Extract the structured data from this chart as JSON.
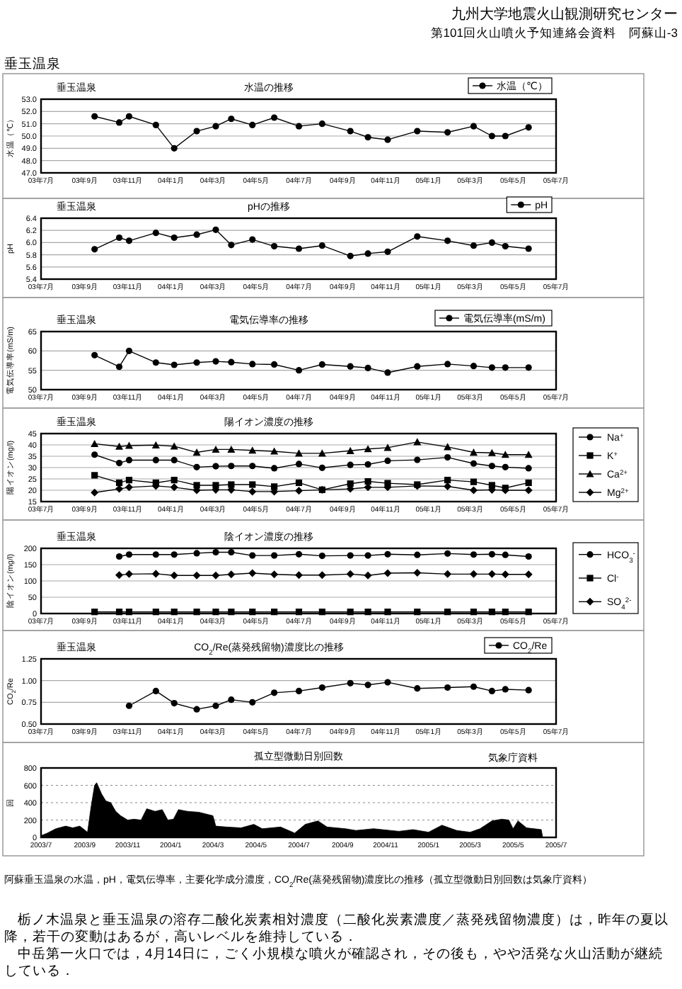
{
  "chart_data": [
    {
      "type": "line",
      "title": "水温の推移",
      "subtitle": "垂玉温泉",
      "ylabel": "水温（℃）",
      "annotations": [
        "九州大学地震火山観測研究センター",
        "第101回火山噴火予知連絡会資料　阿蘇山-3",
        "垂玉温泉"
      ],
      "x": [
        "2003-09-15",
        "2003-10-20",
        "2003-11-03",
        "2003-12-11",
        "2004-01-06",
        "2004-02-07",
        "2004-03-05",
        "2004-03-27",
        "2004-04-26",
        "2004-05-27",
        "2004-07-01",
        "2004-08-03",
        "2004-09-12",
        "2004-10-07",
        "2004-11-04",
        "2004-12-16",
        "2005-01-28",
        "2005-03-06",
        "2005-04-01",
        "2005-04-20",
        "2005-05-23"
      ],
      "series": [
        {
          "name": "水温（℃）",
          "color": "#000000",
          "values": [
            51.6,
            51.1,
            51.6,
            50.9,
            49.0,
            50.4,
            50.8,
            51.4,
            50.9,
            51.5,
            50.8,
            51.0,
            50.4,
            49.9,
            49.7,
            50.4,
            50.3,
            50.8,
            50.0,
            50.0,
            50.7
          ]
        }
      ],
      "xlim": [
        "2003-07-01",
        "2005-07-01"
      ],
      "xticks": [
        {
          "value": "2003-07-01",
          "label": "03年7月"
        },
        {
          "value": "2003-09-01",
          "label": "03年9月"
        },
        {
          "value": "2003-11-01",
          "label": "03年11月"
        },
        {
          "value": "2004-01-01",
          "label": "04年1月"
        },
        {
          "value": "2004-03-01",
          "label": "04年3月"
        },
        {
          "value": "2004-05-01",
          "label": "04年5月"
        },
        {
          "value": "2004-07-01",
          "label": "04年7月"
        },
        {
          "value": "2004-09-01",
          "label": "04年9月"
        },
        {
          "value": "2004-11-01",
          "label": "04年11月"
        },
        {
          "value": "2005-01-01",
          "label": "05年1月"
        },
        {
          "value": "2005-03-01",
          "label": "05年3月"
        },
        {
          "value": "2005-05-01",
          "label": "05年5月"
        },
        {
          "value": "2005-07-01",
          "label": "05年7月"
        }
      ],
      "ylim": [
        47,
        53
      ],
      "yticks": [
        {
          "value": 47,
          "label": "47.0"
        },
        {
          "value": 48,
          "label": "48.0"
        },
        {
          "value": 49,
          "label": "49.0"
        },
        {
          "value": 50,
          "label": "50.0"
        },
        {
          "value": 51,
          "label": "51.0"
        },
        {
          "value": 52,
          "label": "52.0"
        },
        {
          "value": 53,
          "label": "53.0"
        }
      ],
      "grid": "y",
      "legend": "top right",
      "marker": "circle"
    },
    {
      "type": "line",
      "title": "pHの推移",
      "subtitle": "垂玉温泉",
      "ylabel": "pH",
      "x": [
        "2003-09-15",
        "2003-10-20",
        "2003-11-03",
        "2003-12-11",
        "2004-01-06",
        "2004-02-07",
        "2004-03-05",
        "2004-03-27",
        "2004-04-26",
        "2004-05-27",
        "2004-07-01",
        "2004-08-03",
        "2004-09-12",
        "2004-10-07",
        "2004-11-04",
        "2004-12-16",
        "2005-01-28",
        "2005-03-06",
        "2005-04-01",
        "2005-04-20",
        "2005-05-23"
      ],
      "series": [
        {
          "name": "pH",
          "color": "#000000",
          "values": [
            5.89,
            6.08,
            6.03,
            6.16,
            6.08,
            6.13,
            6.21,
            5.96,
            6.05,
            5.94,
            5.9,
            5.95,
            5.78,
            5.82,
            5.85,
            6.1,
            6.03,
            5.95,
            6.0,
            5.94,
            5.9
          ]
        }
      ],
      "xlim": [
        "2003-07-01",
        "2005-07-01"
      ],
      "xticks": [
        {
          "value": "2003-07-01",
          "label": "03年7月"
        },
        {
          "value": "2003-09-01",
          "label": "03年9月"
        },
        {
          "value": "2003-11-01",
          "label": "03年11月"
        },
        {
          "value": "2004-01-01",
          "label": "04年1月"
        },
        {
          "value": "2004-03-01",
          "label": "04年3月"
        },
        {
          "value": "2004-05-01",
          "label": "04年5月"
        },
        {
          "value": "2004-07-01",
          "label": "04年7月"
        },
        {
          "value": "2004-09-01",
          "label": "04年9月"
        },
        {
          "value": "2004-11-01",
          "label": "04年11月"
        },
        {
          "value": "2005-01-01",
          "label": "05年1月"
        },
        {
          "value": "2005-03-01",
          "label": "05年3月"
        },
        {
          "value": "2005-05-01",
          "label": "05年5月"
        },
        {
          "value": "2005-07-01",
          "label": "05年7月"
        }
      ],
      "ylim": [
        5.4,
        6.4
      ],
      "yticks": [
        5.4,
        5.6,
        5.8,
        {
          "value": 6.0,
          "label": "6.0"
        },
        6.2,
        6.4
      ],
      "grid": "y",
      "legend": "top right",
      "marker": "circle"
    },
    {
      "type": "line",
      "title": "電気伝導率の推移",
      "subtitle": "垂玉温泉",
      "ylabel": "電気伝導率(mS/m)",
      "x": [
        "2003-09-15",
        "2003-10-20",
        "2003-11-03",
        "2003-12-11",
        "2004-01-06",
        "2004-02-07",
        "2004-03-05",
        "2004-03-27",
        "2004-04-26",
        "2004-05-27",
        "2004-07-01",
        "2004-08-03",
        "2004-09-12",
        "2004-10-07",
        "2004-11-04",
        "2004-12-16",
        "2005-01-28",
        "2005-03-06",
        "2005-04-01",
        "2005-04-20",
        "2005-05-23"
      ],
      "series": [
        {
          "name": "電気伝導率(mS/m)",
          "color": "#000000",
          "values": [
            58.9,
            55.9,
            60.0,
            57.0,
            56.4,
            57.0,
            57.3,
            57.1,
            56.6,
            56.5,
            55.0,
            56.5,
            56.0,
            55.6,
            54.4,
            56.0,
            56.6,
            56.1,
            55.7,
            55.7,
            55.7
          ]
        }
      ],
      "xlim": [
        "2003-07-01",
        "2005-07-01"
      ],
      "xticks": [
        {
          "value": "2003-07-01",
          "label": "03年7月"
        },
        {
          "value": "2003-09-01",
          "label": "03年9月"
        },
        {
          "value": "2003-11-01",
          "label": "03年11月"
        },
        {
          "value": "2004-01-01",
          "label": "04年1月"
        },
        {
          "value": "2004-03-01",
          "label": "04年3月"
        },
        {
          "value": "2004-05-01",
          "label": "04年5月"
        },
        {
          "value": "2004-07-01",
          "label": "04年7月"
        },
        {
          "value": "2004-09-01",
          "label": "04年9月"
        },
        {
          "value": "2004-11-01",
          "label": "04年11月"
        },
        {
          "value": "2005-01-01",
          "label": "05年1月"
        },
        {
          "value": "2005-03-01",
          "label": "05年3月"
        },
        {
          "value": "2005-05-01",
          "label": "05年5月"
        },
        {
          "value": "2005-07-01",
          "label": "05年7月"
        }
      ],
      "ylim": [
        50,
        65
      ],
      "yticks": [
        50,
        55,
        60,
        65
      ],
      "grid": "y",
      "legend": "top right",
      "marker": "circle"
    },
    {
      "type": "line",
      "title": "陽イオン濃度の推移",
      "subtitle": "垂玉温泉",
      "ylabel": "陽イオン(mg/l)",
      "x": [
        "2003-09-15",
        "2003-10-20",
        "2003-11-03",
        "2003-12-11",
        "2004-01-06",
        "2004-02-07",
        "2004-03-05",
        "2004-03-27",
        "2004-04-26",
        "2004-05-27",
        "2004-07-01",
        "2004-08-03",
        "2004-09-12",
        "2004-10-07",
        "2004-11-04",
        "2004-12-16",
        "2005-01-28",
        "2005-03-06",
        "2005-04-01",
        "2005-04-20",
        "2005-05-23"
      ],
      "series": [
        {
          "name": "Na$^{+}$",
          "color": "#000000",
          "marker": "circle",
          "values": [
            35.7,
            32.0,
            33.3,
            33.3,
            33.3,
            30.2,
            30.6,
            30.7,
            30.7,
            29.7,
            31.6,
            29.9,
            31.2,
            31.4,
            33.0,
            33.4,
            34.5,
            31.8,
            30.7,
            30.2,
            29.7
          ]
        },
        {
          "name": "K$^{+}$",
          "color": "#000000",
          "marker": "square",
          "values": [
            26.6,
            23.3,
            24.5,
            23.3,
            24.5,
            22.2,
            22.2,
            22.5,
            22.5,
            21.6,
            23.3,
            20.2,
            22.9,
            23.9,
            23.1,
            22.5,
            24.5,
            23.7,
            22.2,
            21.0,
            23.3
          ]
        },
        {
          "name": "Ca$^{2+}$",
          "color": "#000000",
          "marker": "triangle",
          "values": [
            40.5,
            39.3,
            39.7,
            39.9,
            39.4,
            36.7,
            38.0,
            38.0,
            37.6,
            37.2,
            36.3,
            36.3,
            37.4,
            38.2,
            38.8,
            41.3,
            39.1,
            36.7,
            36.5,
            35.7,
            35.7
          ]
        },
        {
          "name": "Mg$^{2+}$",
          "color": "#000000",
          "marker": "diamond",
          "values": [
            19.0,
            20.6,
            21.3,
            21.9,
            21.3,
            20.0,
            20.2,
            20.2,
            19.4,
            19.4,
            19.8,
            20.2,
            20.6,
            21.3,
            21.3,
            21.9,
            21.7,
            20.0,
            20.2,
            20.0,
            20.0
          ]
        }
      ],
      "xlim": [
        "2003-07-01",
        "2005-07-01"
      ],
      "xticks": [
        {
          "value": "2003-07-01",
          "label": "03年7月"
        },
        {
          "value": "2003-09-01",
          "label": "03年9月"
        },
        {
          "value": "2003-11-01",
          "label": "03年11月"
        },
        {
          "value": "2004-01-01",
          "label": "04年1月"
        },
        {
          "value": "2004-03-01",
          "label": "04年3月"
        },
        {
          "value": "2004-05-01",
          "label": "04年5月"
        },
        {
          "value": "2004-07-01",
          "label": "04年7月"
        },
        {
          "value": "2004-09-01",
          "label": "04年9月"
        },
        {
          "value": "2004-11-01",
          "label": "04年11月"
        },
        {
          "value": "2005-01-01",
          "label": "05年1月"
        },
        {
          "value": "2005-03-01",
          "label": "05年3月"
        },
        {
          "value": "2005-05-01",
          "label": "05年5月"
        },
        {
          "value": "2005-07-01",
          "label": "05年7月"
        }
      ],
      "ylim": [
        15,
        45
      ],
      "yticks": [
        15,
        20,
        25,
        30,
        35,
        40,
        45
      ],
      "grid": "y",
      "legend": "right"
    },
    {
      "type": "line",
      "title": "陰イオン濃度の推移",
      "subtitle": "垂玉温泉",
      "ylabel": "陰イオン(mg/l)",
      "x": [
        "2003-09-15",
        "2003-10-20",
        "2003-11-03",
        "2003-12-11",
        "2004-01-06",
        "2004-02-07",
        "2004-03-05",
        "2004-03-27",
        "2004-04-26",
        "2004-05-27",
        "2004-07-01",
        "2004-08-03",
        "2004-09-12",
        "2004-10-07",
        "2004-11-04",
        "2004-12-16",
        "2005-01-28",
        "2005-03-06",
        "2005-04-01",
        "2005-04-20",
        "2005-05-23"
      ],
      "series": [
        {
          "name": "HCO$_{3}$$^{-}$",
          "color": "#000000",
          "marker": "circle",
          "values": [
            null,
            175,
            181,
            181,
            181,
            185,
            188,
            188,
            178,
            178,
            182,
            177,
            178,
            178,
            182,
            180,
            184,
            181,
            182,
            180,
            175
          ]
        },
        {
          "name": "Cl$^{-}$",
          "color": "#000000",
          "marker": "square",
          "values": [
            5,
            5,
            5,
            5,
            5,
            5,
            5,
            5,
            5,
            5,
            5,
            5,
            5,
            5,
            5,
            5,
            5,
            5,
            5,
            5,
            5
          ]
        },
        {
          "name": "SO$_{4}$$^{2-}$",
          "color": "#000000",
          "marker": "diamond",
          "values": [
            null,
            118,
            121,
            122,
            117,
            117,
            117,
            120,
            124,
            120,
            118,
            118,
            121,
            117,
            124,
            125,
            121,
            121,
            121,
            120,
            120
          ]
        }
      ],
      "xlim": [
        "2003-07-01",
        "2005-07-01"
      ],
      "xticks": [
        {
          "value": "2003-07-01",
          "label": "03年7月"
        },
        {
          "value": "2003-09-01",
          "label": "03年9月"
        },
        {
          "value": "2003-11-01",
          "label": "03年11月"
        },
        {
          "value": "2004-01-01",
          "label": "04年1月"
        },
        {
          "value": "2004-03-01",
          "label": "04年3月"
        },
        {
          "value": "2004-05-01",
          "label": "04年5月"
        },
        {
          "value": "2004-07-01",
          "label": "04年7月"
        },
        {
          "value": "2004-09-01",
          "label": "04年9月"
        },
        {
          "value": "2004-11-01",
          "label": "04年11月"
        },
        {
          "value": "2005-01-01",
          "label": "05年1月"
        },
        {
          "value": "2005-03-01",
          "label": "05年3月"
        },
        {
          "value": "2005-05-01",
          "label": "05年5月"
        },
        {
          "value": "2005-07-01",
          "label": "05年7月"
        }
      ],
      "ylim": [
        0,
        200
      ],
      "yticks": [
        0,
        50,
        100,
        150,
        200
      ],
      "grid": "y",
      "legend": "right"
    },
    {
      "type": "line",
      "title": "CO$_{2}$/Re(蒸発残留物)濃度比の推移",
      "subtitle": "垂玉温泉",
      "ylabel": "CO$_{2}$/Re",
      "x": [
        "2003-11-03",
        "2003-12-11",
        "2004-01-06",
        "2004-02-07",
        "2004-03-05",
        "2004-03-27",
        "2004-04-26",
        "2004-05-27",
        "2004-07-01",
        "2004-08-03",
        "2004-09-12",
        "2004-10-07",
        "2004-11-04",
        "2004-12-16",
        "2005-01-28",
        "2005-03-06",
        "2005-04-01",
        "2005-04-20",
        "2005-05-23"
      ],
      "series": [
        {
          "name": "CO$_{2}$/Re",
          "color": "#000000",
          "values": [
            0.71,
            0.88,
            0.74,
            0.67,
            0.71,
            0.78,
            0.75,
            0.86,
            0.88,
            0.92,
            0.97,
            0.95,
            0.98,
            0.91,
            0.92,
            0.93,
            0.88,
            0.9,
            0.89
          ]
        }
      ],
      "xlim": [
        "2003-07-01",
        "2005-07-01"
      ],
      "xticks": [
        {
          "value": "2003-07-01",
          "label": "03年7月"
        },
        {
          "value": "2003-09-01",
          "label": "03年9月"
        },
        {
          "value": "2003-11-01",
          "label": "03年11月"
        },
        {
          "value": "2004-01-01",
          "label": "04年1月"
        },
        {
          "value": "2004-03-01",
          "label": "04年3月"
        },
        {
          "value": "2004-05-01",
          "label": "04年5月"
        },
        {
          "value": "2004-07-01",
          "label": "04年7月"
        },
        {
          "value": "2004-09-01",
          "label": "04年9月"
        },
        {
          "value": "2004-11-01",
          "label": "04年11月"
        },
        {
          "value": "2005-01-01",
          "label": "05年1月"
        },
        {
          "value": "2005-03-01",
          "label": "05年3月"
        },
        {
          "value": "2005-05-01",
          "label": "05年5月"
        },
        {
          "value": "2005-07-01",
          "label": "05年7月"
        }
      ],
      "ylim": [
        0.5,
        1.25
      ],
      "yticks": [
        {
          "value": 0.5,
          "label": "0.50"
        },
        {
          "value": 0.75,
          "label": "0.75"
        },
        {
          "value": 1.0,
          "label": "1.00"
        },
        {
          "value": 1.25,
          "label": "1.25"
        }
      ],
      "grid": "y",
      "legend": "top right",
      "marker": "circle"
    },
    {
      "type": "area",
      "title": "孤立型微動日別回数",
      "ylabel": "回",
      "annotations": [
        "気象庁資料",
        "阿蘇垂玉温泉の水温，pH，電気伝導率，主要化学成分濃度，CO$_{2}$/Re(蒸発残留物)濃度比の推移（孤立型微動日別回数は気象庁資料）",
        "栃ノ木温泉と垂玉温泉の溶存二酸化炭素相対濃度（二酸化炭素濃度／蒸発残留物濃度）は，昨年の夏以降，若干の変動はあるが，高いレベルを維持している．",
        "中岳第一火口では，4月14日に，ごく小規模な噴火が確認され，その後も，やや活発な火山活動が継続している．"
      ],
      "x": [
        "2003-07-01",
        "2003-07-10",
        "2003-07-22",
        "2003-08-05",
        "2003-08-15",
        "2003-08-25",
        "2003-09-05",
        "2003-09-10",
        "2003-09-15",
        "2003-09-18",
        "2003-09-25",
        "2003-10-01",
        "2003-10-08",
        "2003-10-15",
        "2003-10-22",
        "2003-11-01",
        "2003-11-10",
        "2003-11-20",
        "2003-11-28",
        "2003-12-10",
        "2003-12-20",
        "2003-12-28",
        "2004-01-05",
        "2004-01-12",
        "2004-01-25",
        "2004-02-10",
        "2004-02-20",
        "2004-03-01",
        "2004-03-05",
        "2004-03-20",
        "2004-04-10",
        "2004-04-28",
        "2004-05-10",
        "2004-06-05",
        "2004-06-25",
        "2004-07-10",
        "2004-07-28",
        "2004-08-10",
        "2004-09-05",
        "2004-09-20",
        "2004-10-15",
        "2004-11-20",
        "2004-12-10",
        "2005-01-01",
        "2005-01-20",
        "2005-02-10",
        "2005-03-01",
        "2005-03-15",
        "2005-04-01",
        "2005-04-15",
        "2005-04-25",
        "2005-05-01",
        "2005-05-08",
        "2005-05-20",
        "2005-06-10",
        "2005-06-12",
        "2005-07-01"
      ],
      "series": [
        {
          "color": "#000000",
          "values": [
            20,
            50,
            100,
            130,
            110,
            130,
            60,
            350,
            600,
            630,
            500,
            420,
            400,
            300,
            250,
            200,
            210,
            200,
            330,
            300,
            320,
            200,
            210,
            320,
            300,
            290,
            270,
            250,
            130,
            120,
            110,
            150,
            100,
            120,
            50,
            150,
            190,
            120,
            100,
            80,
            100,
            70,
            90,
            60,
            140,
            80,
            60,
            100,
            190,
            210,
            200,
            100,
            190,
            110,
            90,
            0,
            0
          ]
        }
      ],
      "xlim": [
        "2003-07-01",
        "2005-07-01"
      ],
      "xticks": [
        {
          "value": "2003-07-01",
          "label": "2003/7"
        },
        {
          "value": "2003-09-01",
          "label": "2003/9"
        },
        {
          "value": "2003-11-01",
          "label": "2003/11"
        },
        {
          "value": "2004-01-01",
          "label": "2004/1"
        },
        {
          "value": "2004-03-01",
          "label": "2004/3"
        },
        {
          "value": "2004-05-01",
          "label": "2004/5"
        },
        {
          "value": "2004-07-01",
          "label": "2004/7"
        },
        {
          "value": "2004-09-01",
          "label": "2004/9"
        },
        {
          "value": "2004-11-01",
          "label": "2004/11"
        },
        {
          "value": "2005-01-01",
          "label": "2005/1"
        },
        {
          "value": "2005-03-01",
          "label": "2005/3"
        },
        {
          "value": "2005-05-01",
          "label": "2005/5"
        },
        {
          "value": "2005-07-01",
          "label": "2005/7"
        }
      ],
      "ylim": [
        0,
        800
      ],
      "yticks": [
        0,
        200,
        400,
        600,
        800
      ],
      "grid": "y"
    }
  ]
}
